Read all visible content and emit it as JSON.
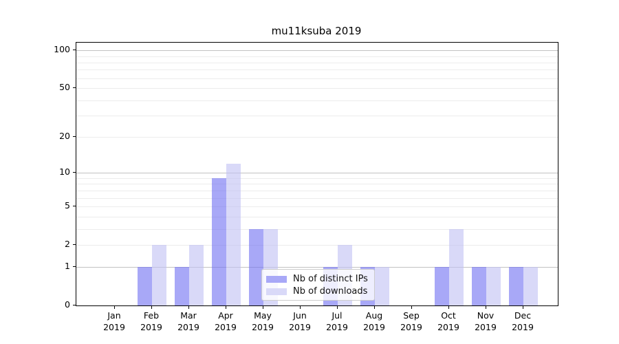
{
  "chart_data": {
    "type": "bar",
    "title": "mu11ksuba 2019",
    "categories": [
      "Jan",
      "Feb",
      "Mar",
      "Apr",
      "May",
      "Jun",
      "Jul",
      "Aug",
      "Sep",
      "Oct",
      "Nov",
      "Dec"
    ],
    "category_year": "2019",
    "series": [
      {
        "name": "Nb of distinct IPs",
        "color": "#a8a8f7",
        "fill": "rgba(110,110,242,0.6)",
        "values": [
          0,
          1,
          1,
          9,
          3,
          0,
          1,
          1,
          0,
          1,
          1,
          1
        ]
      },
      {
        "name": "Nb of downloads",
        "color": "#d9d9f8",
        "fill": "rgba(192,192,243,0.6)",
        "values": [
          0,
          2,
          2,
          12,
          3,
          0,
          2,
          1,
          0,
          3,
          1,
          1
        ]
      }
    ],
    "y_axis": {
      "scale": "log1p",
      "tick_values": [
        0,
        1,
        2,
        5,
        10,
        20,
        50,
        100
      ],
      "gridline_values": [
        1,
        2,
        3,
        4,
        5,
        6,
        7,
        8,
        9,
        10,
        20,
        30,
        40,
        50,
        60,
        70,
        80,
        90,
        100
      ],
      "emphasized_gridlines": [
        1,
        10,
        100
      ],
      "max_value": 115
    },
    "x_axis": {
      "label_line2": "2019"
    },
    "legend": {
      "position": "lower center",
      "entries": [
        "Nb of distinct IPs",
        "Nb of downloads"
      ]
    },
    "grid": true
  },
  "colors": {
    "background": "#ffffff",
    "axis": "#000000",
    "grid_minor": "#ececec",
    "grid_major": "#c2c2c2",
    "text": "#000000",
    "legend_border": "#cccccc",
    "legend_background": "rgba(255,255,255,0.8)"
  }
}
